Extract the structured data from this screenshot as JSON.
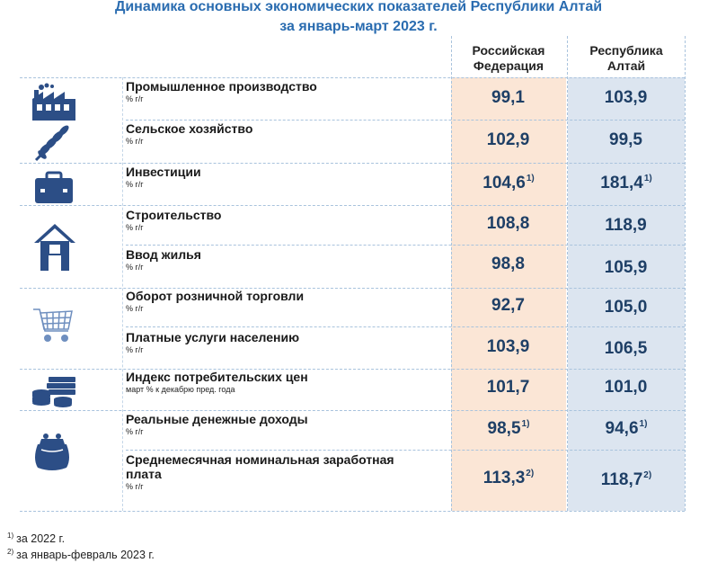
{
  "title": {
    "line1": "Динамика основных экономических показателей Республики Алтай",
    "line2": "за январь-март 2023 г."
  },
  "columns": {
    "russia": "Российская\nФедерация",
    "altai": "Республика\nАлтай"
  },
  "rows": [
    {
      "label": "Промышленное производство",
      "unit": "% г/г",
      "russia": "99,1",
      "russia_note": "",
      "altai": "103,9",
      "altai_note": ""
    },
    {
      "label": "Сельское хозяйство",
      "unit": "% г/г",
      "russia": "102,9",
      "russia_note": "",
      "altai": "99,5",
      "altai_note": ""
    },
    {
      "label": "Инвестиции",
      "unit": "% г/г",
      "russia": "104,6",
      "russia_note": "1)",
      "altai": "181,4",
      "altai_note": "1)"
    },
    {
      "label": "Строительство",
      "unit": "% г/г",
      "russia": "108,8",
      "russia_note": "",
      "altai": "118,9",
      "altai_note": ""
    },
    {
      "label": "Ввод жилья",
      "unit": "% г/г",
      "russia": "98,8",
      "russia_note": "",
      "altai": "105,9",
      "altai_note": ""
    },
    {
      "label": "Оборот розничной торговли",
      "unit": "% г/г",
      "russia": "92,7",
      "russia_note": "",
      "altai": "105,0",
      "altai_note": ""
    },
    {
      "label": "Платные услуги населению",
      "unit": "% г/г",
      "russia": "103,9",
      "russia_note": "",
      "altai": "106,5",
      "altai_note": ""
    },
    {
      "label": "Индекс потребительских цен",
      "unit": "март % к декабрю пред. года",
      "russia": "101,7",
      "russia_note": "",
      "altai": "101,0",
      "altai_note": ""
    },
    {
      "label": "Реальные денежные доходы",
      "unit": "% г/г",
      "russia": "98,5",
      "russia_note": "1)",
      "altai": "94,6",
      "altai_note": "1)"
    },
    {
      "label": "Среднемесячная номинальная заработная плата",
      "unit": "% г/г",
      "russia": "113,3",
      "russia_note": "2)",
      "altai": "118,7",
      "altai_note": "2)"
    }
  ],
  "icons": [
    "factory-icon",
    "wheat-icon",
    "briefcase-icon",
    "house-icon",
    "shopping-cart-icon",
    "coins-icon",
    "wallet-icon"
  ],
  "footnotes": [
    {
      "mark": "1)",
      "text": "за 2022 г."
    },
    {
      "mark": "2)",
      "text": "за январь-февраль 2023 г."
    }
  ],
  "colors": {
    "title": "#2a6cb0",
    "russia_bg": "#fbe6d6",
    "altai_bg": "#dce5f0",
    "value": "#1e3f66",
    "icon": "#2c4e86",
    "divider": "#a9c3dd"
  }
}
